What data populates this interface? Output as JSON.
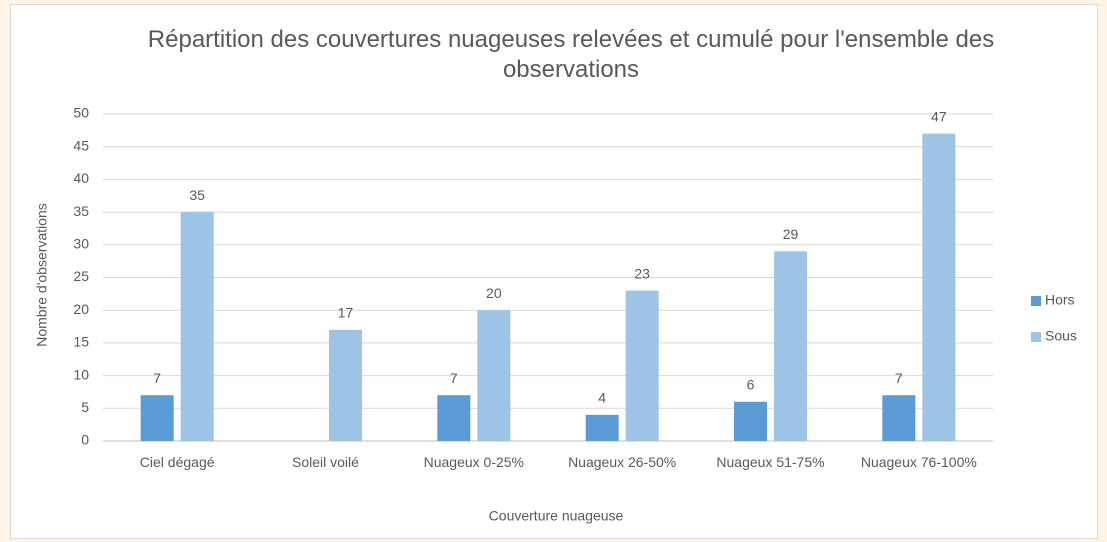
{
  "chart_data": {
    "type": "bar",
    "title": "Répartition des couvertures nuageuses relevées et cumulé pour l'ensemble des observations",
    "xlabel": "Couverture nuageuse",
    "ylabel": "Nombre d'observations",
    "categories": [
      "Ciel dégagé",
      "Soleil voilé",
      "Nuageux 0-25%",
      "Nuageux 26-50%",
      "Nuageux 51-75%",
      "Nuageux 76-100%"
    ],
    "series": [
      {
        "name": "Hors",
        "color": "#5b9bd5",
        "values": [
          7,
          null,
          7,
          4,
          6,
          7
        ]
      },
      {
        "name": "Sous",
        "color": "#9dc3e6",
        "values": [
          35,
          17,
          20,
          23,
          29,
          47
        ]
      }
    ],
    "ylim": [
      0,
      50
    ],
    "yticks": [
      0,
      5,
      10,
      15,
      20,
      25,
      30,
      35,
      40,
      45,
      50
    ],
    "grid": true,
    "legend": "right"
  }
}
